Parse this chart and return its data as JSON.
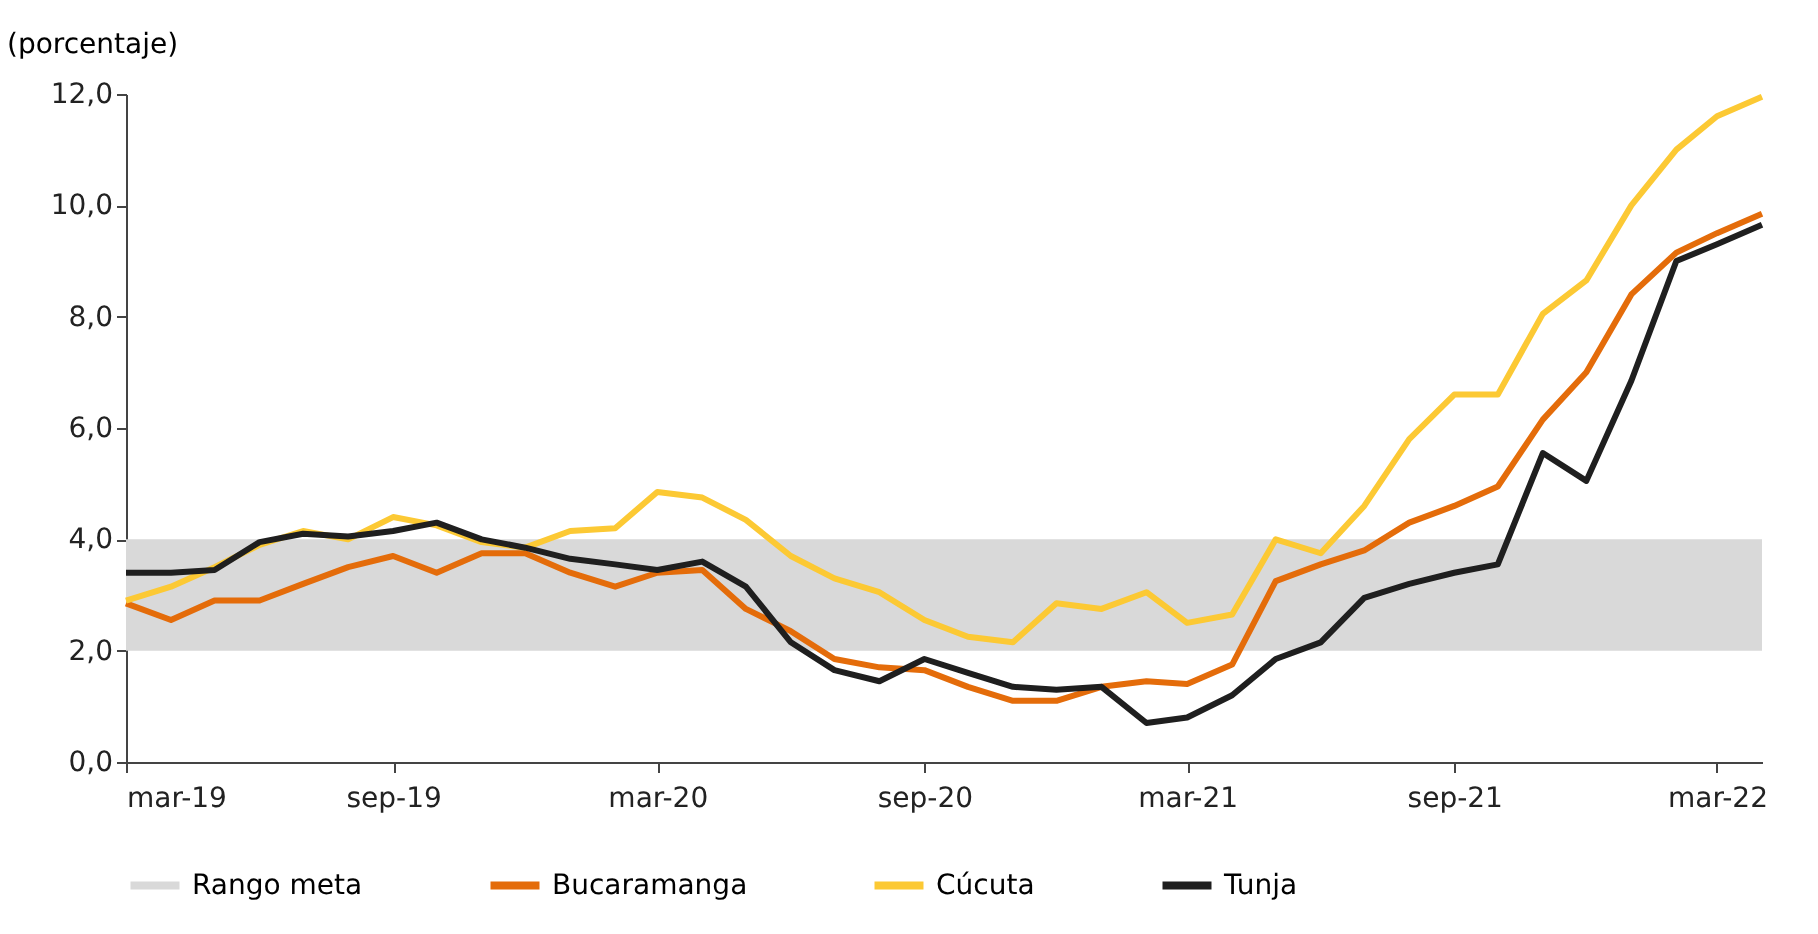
{
  "chart_data": {
    "type": "line",
    "ylabel": "(porcentaje)",
    "x": [
      "2019-03",
      "2019-04",
      "2019-05",
      "2019-06",
      "2019-07",
      "2019-08",
      "2019-09",
      "2019-10",
      "2019-11",
      "2019-12",
      "2020-01",
      "2020-02",
      "2020-03",
      "2020-04",
      "2020-05",
      "2020-06",
      "2020-07",
      "2020-08",
      "2020-09",
      "2020-10",
      "2020-11",
      "2020-12",
      "2021-01",
      "2021-02",
      "2021-03",
      "2021-04",
      "2021-05",
      "2021-06",
      "2021-07",
      "2021-08",
      "2021-09",
      "2021-10",
      "2021-11",
      "2021-12",
      "2022-01",
      "2022-02",
      "2022-03",
      "2022-04"
    ],
    "series": [
      {
        "name": "Bucaramanga",
        "color": "#e46c0a",
        "values": [
          2.85,
          2.55,
          2.9,
          2.9,
          3.2,
          3.5,
          3.7,
          3.4,
          3.75,
          3.75,
          3.4,
          3.15,
          3.4,
          3.45,
          2.75,
          2.35,
          1.85,
          1.7,
          1.65,
          1.35,
          1.1,
          1.1,
          1.35,
          1.45,
          1.4,
          1.75,
          3.25,
          3.55,
          3.8,
          4.3,
          4.6,
          4.95,
          6.15,
          7.0,
          8.4,
          9.15,
          9.5,
          9.85
        ]
      },
      {
        "name": "Cúcuta",
        "color": "#fcc934",
        "values": [
          2.9,
          3.15,
          3.5,
          3.9,
          4.15,
          4.0,
          4.4,
          4.25,
          3.95,
          3.85,
          4.15,
          4.2,
          4.85,
          4.75,
          4.35,
          3.7,
          3.3,
          3.05,
          2.55,
          2.25,
          2.15,
          2.85,
          2.75,
          3.05,
          2.5,
          2.65,
          4.0,
          3.75,
          4.6,
          5.8,
          6.6,
          6.6,
          8.05,
          8.65,
          10.0,
          11.0,
          11.6,
          11.95
        ]
      },
      {
        "name": "Tunja",
        "color": "#1f1f1f",
        "values": [
          3.4,
          3.4,
          3.45,
          3.95,
          4.1,
          4.05,
          4.15,
          4.3,
          4.0,
          3.85,
          3.65,
          3.55,
          3.45,
          3.6,
          3.15,
          2.15,
          1.65,
          1.45,
          1.85,
          1.6,
          1.35,
          1.3,
          1.35,
          0.7,
          0.8,
          1.2,
          1.85,
          2.15,
          2.95,
          3.2,
          3.4,
          3.55,
          5.55,
          5.05,
          6.85,
          9.0,
          9.3,
          9.65
        ]
      }
    ],
    "bands": [
      {
        "axis": "y",
        "from": 2,
        "to": 4,
        "label": "Rango meta",
        "color": "#d9d9d9"
      }
    ],
    "xlim": [
      "2019-03",
      "2022-04"
    ],
    "xticks": [
      {
        "value": "2019-03",
        "label": "mar-19"
      },
      {
        "value": "2019-09",
        "label": "sep-19"
      },
      {
        "value": "2020-03",
        "label": "mar-20"
      },
      {
        "value": "2020-09",
        "label": "sep-20"
      },
      {
        "value": "2021-03",
        "label": "mar-21"
      },
      {
        "value": "2021-09",
        "label": "sep-21"
      },
      {
        "value": "2022-03",
        "label": "mar-22"
      }
    ],
    "ylim": [
      0,
      12
    ],
    "yticks": [
      {
        "value": 0,
        "label": "0,0"
      },
      {
        "value": 2,
        "label": "2,0"
      },
      {
        "value": 4,
        "label": "4,0"
      },
      {
        "value": 6,
        "label": "6,0"
      },
      {
        "value": 8,
        "label": "8,0"
      },
      {
        "value": 10,
        "label": "10,0"
      },
      {
        "value": 12,
        "label": "12,0"
      }
    ],
    "legend": "bottom",
    "grid": false,
    "line_style": "solid"
  }
}
